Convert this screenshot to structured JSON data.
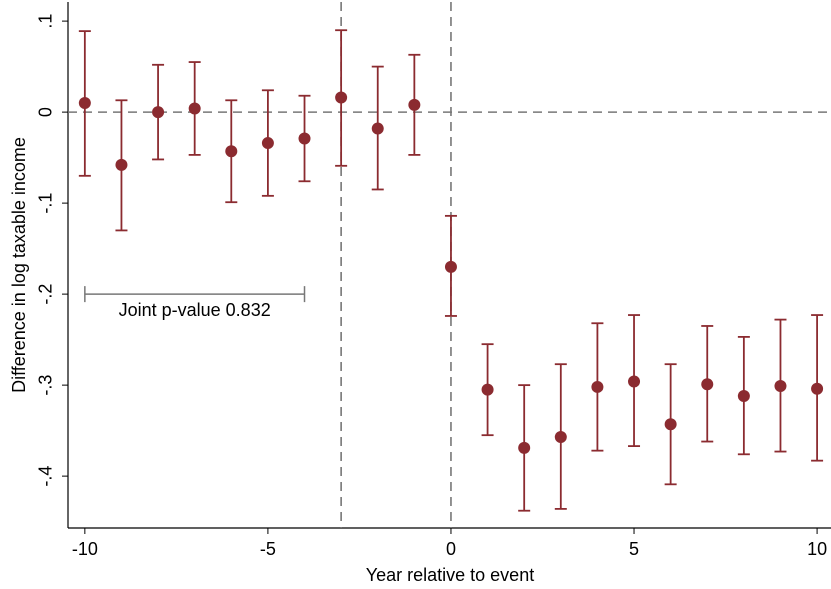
{
  "chart_data": {
    "type": "errorbar-scatter",
    "x_label": "Year relative to event",
    "y_label": "Difference in log taxable income",
    "x": [
      -10,
      -9,
      -8,
      -7,
      -6,
      -5,
      -4,
      -3,
      -2,
      -1,
      0,
      1,
      2,
      3,
      4,
      5,
      6,
      7,
      8,
      9,
      10
    ],
    "series": [
      {
        "color": "#8b2b30",
        "values": [
          0.01,
          -0.058,
          0.0,
          0.004,
          -0.043,
          -0.034,
          -0.029,
          0.016,
          -0.018,
          0.008,
          -0.17,
          -0.305,
          -0.369,
          -0.357,
          -0.302,
          -0.296,
          -0.343,
          -0.299,
          -0.312,
          -0.301,
          -0.304
        ],
        "ci_low": [
          -0.07,
          -0.13,
          -0.052,
          -0.047,
          -0.099,
          -0.092,
          -0.076,
          -0.059,
          -0.085,
          -0.047,
          -0.224,
          -0.355,
          -0.438,
          -0.436,
          -0.372,
          -0.367,
          -0.409,
          -0.362,
          -0.376,
          -0.373,
          -0.383
        ],
        "ci_high": [
          0.089,
          0.013,
          0.052,
          0.055,
          0.013,
          0.024,
          0.018,
          0.09,
          0.05,
          0.063,
          -0.114,
          -0.255,
          -0.3,
          -0.277,
          -0.232,
          -0.223,
          -0.277,
          -0.235,
          -0.247,
          -0.228,
          -0.223
        ]
      }
    ],
    "xlim": [
      -10.46,
      10.38
    ],
    "ylim": [
      -0.457,
      0.121
    ],
    "xticks": [
      -10,
      -5,
      0,
      5,
      10
    ],
    "yticks": [
      {
        "value": 0.1,
        "label": ".1"
      },
      {
        "value": 0,
        "label": "0"
      },
      {
        "value": -0.1,
        "label": "-.1"
      },
      {
        "value": -0.2,
        "label": "-.2"
      },
      {
        "value": -0.3,
        "label": "-.3"
      },
      {
        "value": -0.4,
        "label": "-.4"
      }
    ],
    "vlines": [
      -3,
      0
    ],
    "hlines": [
      0
    ],
    "annotation": {
      "text": "Joint p-value 0.832",
      "x_range": [
        -10,
        -4
      ],
      "y": -0.2
    }
  }
}
